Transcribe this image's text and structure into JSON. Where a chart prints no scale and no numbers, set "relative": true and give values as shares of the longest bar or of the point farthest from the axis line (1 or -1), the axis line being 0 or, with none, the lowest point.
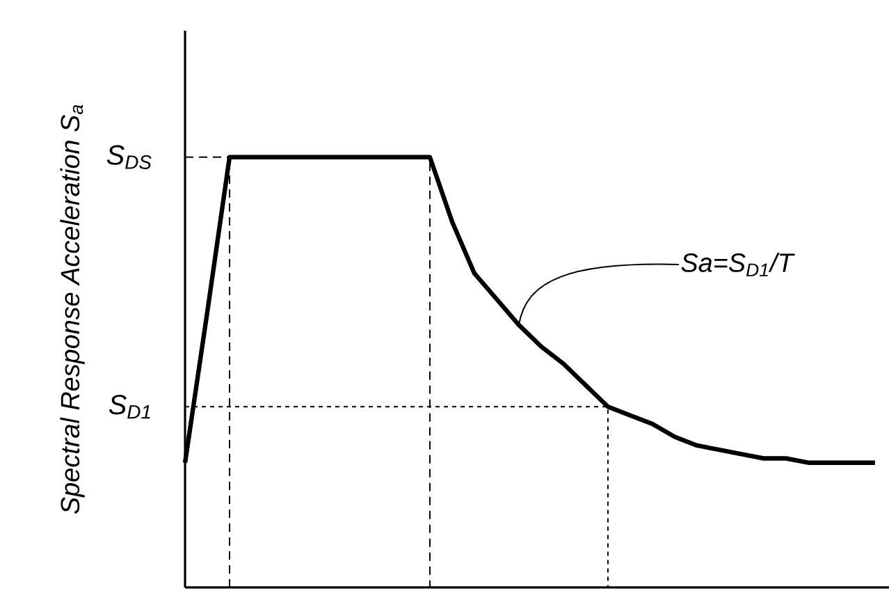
{
  "chart_data": {
    "type": "line",
    "relative": true,
    "ylabel": "Spectral Response Acceleration S$_{a}$",
    "categories": [
      null,
      null,
      null,
      null,
      null,
      null,
      null,
      null,
      null,
      null,
      null,
      null,
      null,
      null,
      null,
      null,
      null,
      null,
      null,
      null,
      null,
      null,
      null,
      null,
      null,
      null,
      null,
      null,
      null,
      null,
      null,
      null
    ],
    "series": [
      {
        "color": "#000000",
        "values": [
          0.29,
          0.64,
          1,
          1,
          1,
          1,
          1,
          1,
          1,
          1,
          1,
          1,
          0.85,
          0.73,
          0.67,
          0.61,
          0.56,
          0.52,
          0.47,
          0.42,
          0.4,
          0.38,
          0.35,
          0.33,
          0.32,
          0.31,
          0.3,
          0.3,
          0.29,
          0.29,
          0.29,
          0.29
        ]
      }
    ],
    "ref_lines": [
      {
        "axis": "y",
        "value": 1,
        "label": "S$_{DS}$",
        "line_style": "dashed"
      },
      {
        "axis": "y",
        "value": 0.42,
        "label": "S$_{D1}$",
        "line_style": "dotted"
      }
    ],
    "annotations": [
      "Sa=S$_{D1}$/T"
    ]
  }
}
